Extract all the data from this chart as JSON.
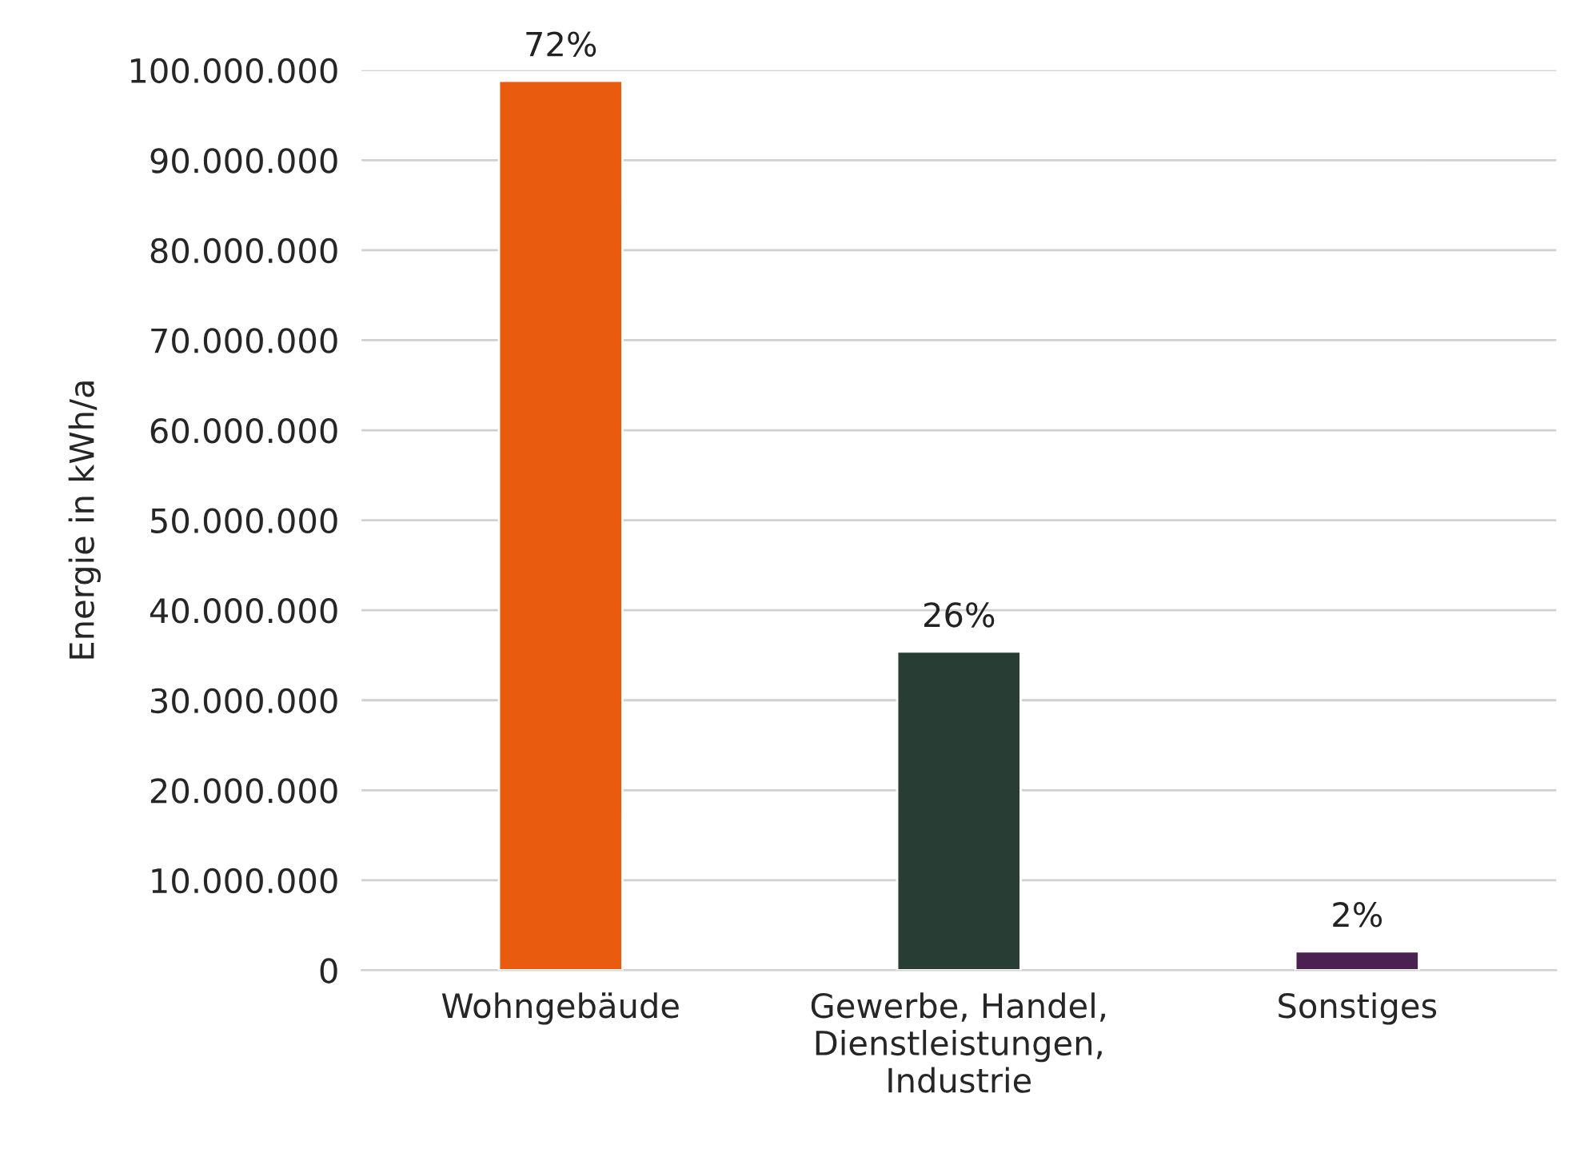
{
  "chart_data": {
    "type": "bar",
    "ylabel": "Energie in kWh/a",
    "categories": [
      "Wohngebäude",
      "Gewerbe, Handel,\nDienstleistungen,\nIndustrie",
      "Sonstiges"
    ],
    "values": [
      98800000,
      35400000,
      2100000
    ],
    "colors": [
      "#e95b0f",
      "#283d33",
      "#4a2150"
    ],
    "annotations": [
      {
        "text": "72%",
        "x": "Wohngebäude",
        "y": 98800000
      },
      {
        "text": "26%",
        "x": "Gewerbe, Handel,\nDienstleistungen,\nIndustrie",
        "y": 35400000
      },
      {
        "text": "2%",
        "x": "Sonstiges",
        "y": 2100000
      }
    ],
    "ylim": [
      0,
      100000000
    ],
    "yticks": [
      {
        "value": 0,
        "label": "0"
      },
      {
        "value": 10000000,
        "label": "10.000.000"
      },
      {
        "value": 20000000,
        "label": "20.000.000"
      },
      {
        "value": 30000000,
        "label": "30.000.000"
      },
      {
        "value": 40000000,
        "label": "40.000.000"
      },
      {
        "value": 50000000,
        "label": "50.000.000"
      },
      {
        "value": 60000000,
        "label": "60.000.000"
      },
      {
        "value": 70000000,
        "label": "70.000.000"
      },
      {
        "value": 80000000,
        "label": "80.000.000"
      },
      {
        "value": 90000000,
        "label": "90.000.000"
      },
      {
        "value": 100000000,
        "label": "100.000.000"
      }
    ],
    "grid": "y"
  }
}
